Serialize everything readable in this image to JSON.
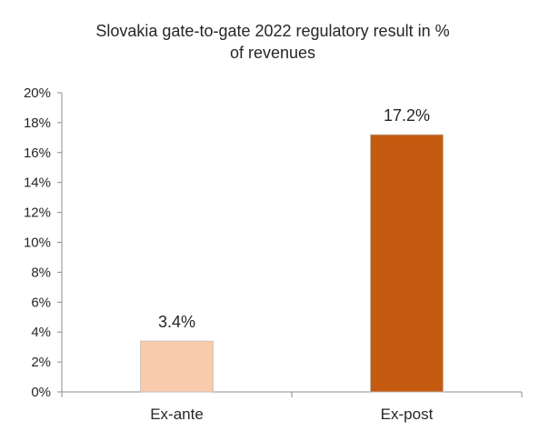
{
  "chart_data": {
    "type": "bar",
    "title_lines": [
      "Slovakia gate-to-gate 2022 regulatory result in %",
      "of revenues"
    ],
    "categories": [
      "Ex-ante",
      "Ex-post"
    ],
    "values": [
      3.4,
      17.2
    ],
    "data_labels": [
      "3.4%",
      "17.2%"
    ],
    "colors": [
      "#F8CBAD",
      "#C55A11"
    ],
    "ylim": [
      0,
      20
    ],
    "yticks": [
      0,
      2,
      4,
      6,
      8,
      10,
      12,
      14,
      16,
      18,
      20
    ],
    "ytick_labels": [
      "0%",
      "2%",
      "4%",
      "6%",
      "8%",
      "10%",
      "12%",
      "14%",
      "16%",
      "18%",
      "20%"
    ],
    "xlabel": "",
    "ylabel": "",
    "grid": false,
    "legend": "none"
  }
}
